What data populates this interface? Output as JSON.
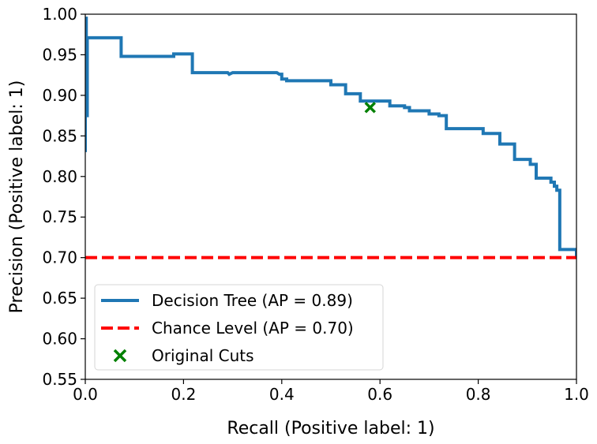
{
  "chart_data": {
    "type": "line",
    "title": "",
    "xlabel": "Recall (Positive label: 1)",
    "ylabel": "Precision (Positive label: 1)",
    "xlim": [
      0.0,
      1.0
    ],
    "ylim": [
      0.55,
      1.0
    ],
    "xticks": [
      "0.0",
      "0.2",
      "0.4",
      "0.6",
      "0.8",
      "1.0"
    ],
    "yticks": [
      "0.55",
      "0.60",
      "0.65",
      "0.70",
      "0.75",
      "0.80",
      "0.85",
      "0.90",
      "0.95",
      "1.00"
    ],
    "grid": false,
    "legend_position": "lower-left",
    "series": [
      {
        "name": "Decision Tree (AP = 0.89)",
        "style": "solid",
        "color": "#1f77b4",
        "x": [
          0.0,
          0.0,
          0.002,
          0.002,
          0.004,
          0.004,
          0.006,
          0.006,
          0.073,
          0.073,
          0.18,
          0.18,
          0.218,
          0.218,
          0.29,
          0.293,
          0.3,
          0.3,
          0.39,
          0.395,
          0.4,
          0.4,
          0.41,
          0.41,
          0.5,
          0.5,
          0.53,
          0.53,
          0.56,
          0.56,
          0.62,
          0.62,
          0.65,
          0.65,
          0.66,
          0.66,
          0.7,
          0.7,
          0.72,
          0.72,
          0.735,
          0.735,
          0.81,
          0.81,
          0.844,
          0.844,
          0.874,
          0.874,
          0.906,
          0.906,
          0.918,
          0.918,
          0.948,
          0.948,
          0.955,
          0.955,
          0.96,
          0.96,
          0.966,
          0.966,
          1.0,
          1.0
        ],
        "y": [
          0.83,
          0.995,
          0.995,
          0.875,
          0.875,
          0.971,
          0.971,
          0.971,
          0.971,
          0.948,
          0.948,
          0.951,
          0.951,
          0.928,
          0.928,
          0.926,
          0.928,
          0.928,
          0.928,
          0.926,
          0.926,
          0.92,
          0.92,
          0.918,
          0.918,
          0.913,
          0.913,
          0.902,
          0.902,
          0.893,
          0.893,
          0.887,
          0.887,
          0.885,
          0.885,
          0.881,
          0.881,
          0.877,
          0.877,
          0.875,
          0.875,
          0.859,
          0.859,
          0.853,
          0.853,
          0.84,
          0.84,
          0.821,
          0.821,
          0.815,
          0.815,
          0.798,
          0.798,
          0.793,
          0.793,
          0.788,
          0.788,
          0.783,
          0.783,
          0.71,
          0.71,
          0.7
        ]
      },
      {
        "name": "Chance Level (AP = 0.70)",
        "style": "dashed",
        "color": "#ff0000",
        "x": [
          0.0,
          1.0
        ],
        "y": [
          0.7,
          0.7
        ]
      },
      {
        "name": "Original Cuts",
        "style": "marker-x",
        "color": "#008000",
        "x": [
          0.58
        ],
        "y": [
          0.885
        ]
      }
    ]
  }
}
